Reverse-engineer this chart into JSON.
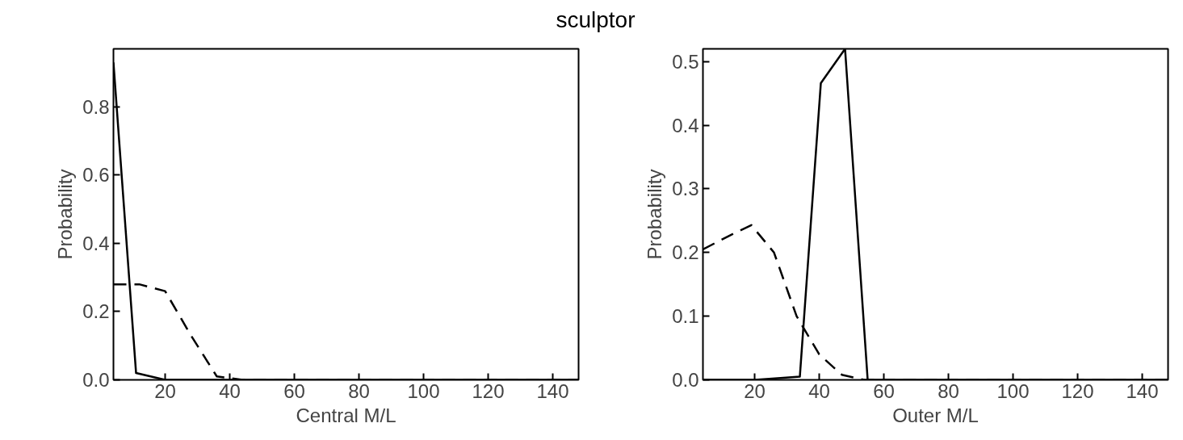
{
  "chart_data": [
    {
      "type": "line",
      "title": "sculptor",
      "xlabel": "Central M/L",
      "ylabel": "Probability",
      "xlim": [
        4,
        148
      ],
      "ylim": [
        0,
        0.97
      ],
      "xticks": [
        20,
        40,
        60,
        80,
        100,
        120,
        140
      ],
      "yticks": [
        {
          "value": 0,
          "label": "0.0"
        },
        0.2,
        0.4,
        0.6,
        0.8
      ],
      "grid": false,
      "series": [
        {
          "color": "#000000",
          "line_style": "solid",
          "x": [
            4,
            11,
            20,
            28,
            148
          ],
          "values": [
            0.93,
            0.02,
            0.0,
            0.0,
            0.0
          ]
        },
        {
          "color": "#000000",
          "line_style": "dashed",
          "x": [
            4,
            12,
            20,
            28,
            36,
            44,
            148
          ],
          "values": [
            0.28,
            0.28,
            0.26,
            0.13,
            0.01,
            0.0,
            0.0
          ]
        }
      ]
    },
    {
      "type": "line",
      "xlabel": "Outer M/L",
      "ylabel": "Probability",
      "xlim": [
        4,
        148
      ],
      "ylim": [
        0,
        0.52
      ],
      "xticks": [
        20,
        40,
        60,
        80,
        100,
        120,
        140
      ],
      "yticks": [
        {
          "value": 0,
          "label": "0.0"
        },
        0.1,
        0.2,
        0.3,
        0.4,
        0.5
      ],
      "grid": false,
      "series": [
        {
          "color": "#000000",
          "line_style": "solid",
          "x": [
            4,
            20,
            28,
            34,
            40.5,
            48,
            55,
            148
          ],
          "values": [
            0.0,
            0.0,
            0.003,
            0.005,
            0.466,
            0.52,
            0.0,
            0.0
          ]
        },
        {
          "color": "#000000",
          "line_style": "dashed",
          "x": [
            4,
            12,
            19,
            26,
            33,
            40,
            47,
            54,
            148
          ],
          "values": [
            0.205,
            0.226,
            0.243,
            0.2,
            0.1,
            0.04,
            0.008,
            0.0,
            0.0
          ]
        }
      ]
    }
  ]
}
